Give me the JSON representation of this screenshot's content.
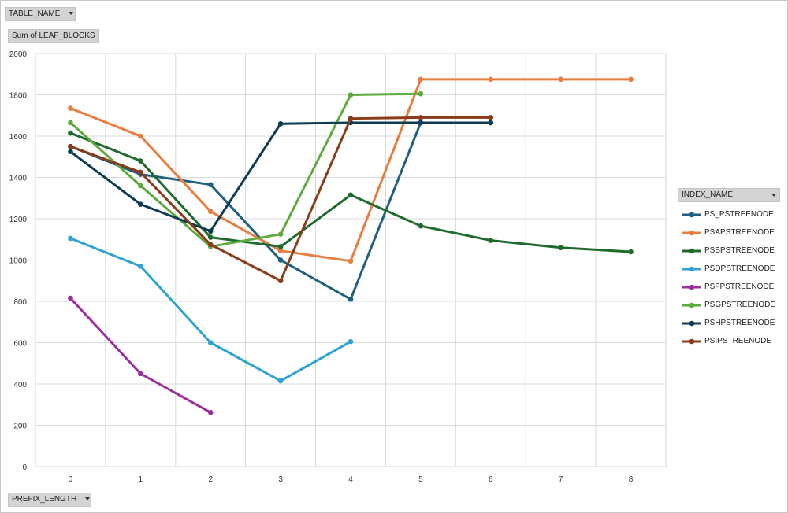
{
  "filters": {
    "table_name": "TABLE_NAME",
    "values_field": "Sum of LEAF_BLOCKS",
    "axis_field": "PREFIX_LENGTH",
    "legend_field": "INDEX_NAME"
  },
  "chart_data": {
    "type": "line",
    "title": "",
    "xlabel": "PREFIX_LENGTH",
    "ylabel": "Sum of LEAF_BLOCKS",
    "categories": [
      "0",
      "1",
      "2",
      "3",
      "4",
      "5",
      "6",
      "7",
      "8"
    ],
    "ylim": [
      0,
      2000
    ],
    "yticks": [
      "0",
      "200",
      "400",
      "600",
      "800",
      "1000",
      "1200",
      "1400",
      "1600",
      "1800",
      "2000"
    ],
    "grid": true,
    "legend_position": "right",
    "series": [
      {
        "name": "PS_PSTREENODE",
        "color": "#1f5f7f",
        "values": [
          1550,
          1415,
          1365,
          1000,
          810,
          1665,
          1665,
          null,
          null
        ]
      },
      {
        "name": "PSAPSTREENODE",
        "color": "#e87d3e",
        "values": [
          1735,
          1600,
          1235,
          1045,
          995,
          1875,
          1875,
          1875,
          1875
        ]
      },
      {
        "name": "PSBPSTREENODE",
        "color": "#1f6b2c",
        "values": [
          1615,
          1480,
          1110,
          1065,
          1315,
          1165,
          1095,
          1060,
          1040
        ]
      },
      {
        "name": "PSDPSTREENODE",
        "color": "#2ea3d4",
        "values": [
          1105,
          970,
          600,
          415,
          605,
          null,
          null,
          null,
          null
        ]
      },
      {
        "name": "PSFPSTREENODE",
        "color": "#9b2f9e",
        "values": [
          815,
          450,
          262,
          null,
          null,
          null,
          null,
          null,
          null
        ]
      },
      {
        "name": "PSGPSTREENODE",
        "color": "#5cab3c",
        "values": [
          1665,
          1360,
          1065,
          1125,
          1800,
          1805,
          null,
          null,
          null
        ]
      },
      {
        "name": "PSHPSTREENODE",
        "color": "#0e3c54",
        "values": [
          1525,
          1270,
          1140,
          1660,
          1665,
          1665,
          1665,
          null,
          null
        ]
      },
      {
        "name": "PSIPSTREENODE",
        "color": "#8a3b17",
        "values": [
          1550,
          1425,
          1075,
          900,
          1685,
          1690,
          1690,
          null,
          null
        ]
      }
    ]
  }
}
